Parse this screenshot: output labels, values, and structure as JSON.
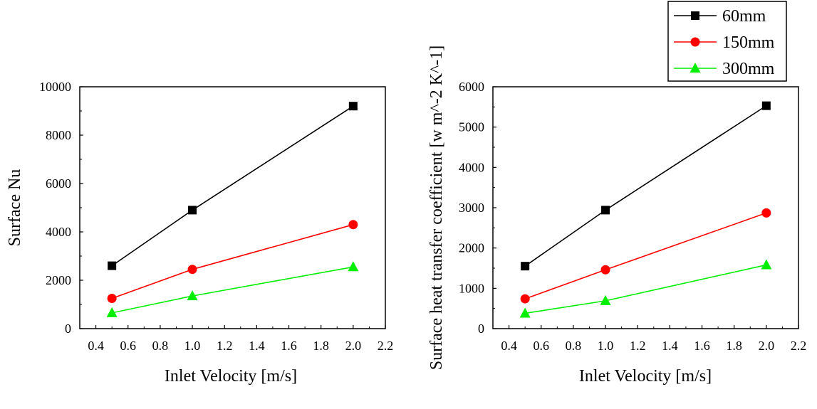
{
  "chart_data": [
    {
      "type": "line",
      "xlabel": "Inlet Velocity [m/s]",
      "ylabel": "Surface Nu",
      "xlim": [
        0.3,
        2.2
      ],
      "ylim": [
        0,
        10000
      ],
      "xticks": [
        "0.4",
        "0.6",
        "0.8",
        "1.0",
        "1.2",
        "1.4",
        "1.6",
        "1.8",
        "2.0",
        "2.2"
      ],
      "yticks": [
        "0",
        "2000",
        "4000",
        "6000",
        "8000",
        "10000"
      ],
      "x": [
        0.5,
        1.0,
        2.0
      ],
      "series": [
        {
          "name": "60mm",
          "values": [
            2600,
            4900,
            9200
          ]
        },
        {
          "name": "150mm",
          "values": [
            1250,
            2450,
            4300
          ]
        },
        {
          "name": "300mm",
          "values": [
            650,
            1350,
            2550
          ]
        }
      ],
      "grid": false
    },
    {
      "type": "line",
      "xlabel": "Inlet Velocity [m/s]",
      "ylabel": "Surface heat transfer coefficient [w m^-2 K^-1]",
      "xlim": [
        0.3,
        2.2
      ],
      "ylim": [
        0,
        6000
      ],
      "xticks": [
        "0.4",
        "0.6",
        "0.8",
        "1.0",
        "1.2",
        "1.4",
        "1.6",
        "1.8",
        "2.0",
        "2.2"
      ],
      "yticks": [
        "0",
        "1000",
        "2000",
        "3000",
        "4000",
        "5000",
        "6000"
      ],
      "x": [
        0.5,
        1.0,
        2.0
      ],
      "series": [
        {
          "name": "60mm",
          "values": [
            1550,
            2940,
            5530
          ]
        },
        {
          "name": "150mm",
          "values": [
            740,
            1460,
            2870
          ]
        },
        {
          "name": "300mm",
          "values": [
            380,
            690,
            1580
          ]
        }
      ],
      "grid": false
    }
  ],
  "legend": {
    "placement": "top-right",
    "entries": [
      {
        "label": "60mm",
        "color": "#000000",
        "marker": "square"
      },
      {
        "label": "150mm",
        "color": "#ff0000",
        "marker": "circle"
      },
      {
        "label": "300mm",
        "color": "#00ee00",
        "marker": "triangle"
      }
    ]
  },
  "colors": {
    "60mm": "#000000",
    "150mm": "#ff0000",
    "300mm": "#00ee00"
  }
}
